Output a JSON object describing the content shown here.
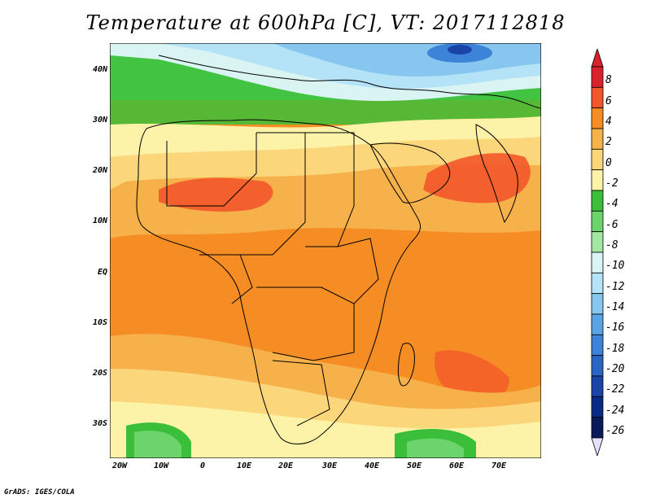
{
  "title": "Temperature at 600hPa [C], VT: 2017112818",
  "credit": "GrADS: IGES/COLA",
  "lat_labels": [
    "40N",
    "30N",
    "20N",
    "10N",
    "EQ",
    "10S",
    "20S",
    "30S"
  ],
  "lon_labels": [
    "20W",
    "10W",
    "0",
    "10E",
    "20E",
    "30E",
    "40E",
    "50E",
    "60E",
    "70E"
  ],
  "colorbar": {
    "labels": [
      "8",
      "6",
      "4",
      "2",
      "0",
      "-2",
      "-4",
      "-6",
      "-8",
      "-10",
      "-12",
      "-14",
      "-16",
      "-18",
      "-20",
      "-22",
      "-24",
      "-26"
    ],
    "colors": [
      "#d8222c",
      "#f3562a",
      "#f58c24",
      "#f6b14a",
      "#fbd67a",
      "#fdf3a8",
      "#3bbf3a",
      "#6bd46b",
      "#a2e8a2",
      "#d9f4f2",
      "#b4e2f6",
      "#86c6ef",
      "#5aa4e6",
      "#3d84d9",
      "#2a65c4",
      "#1a44a8",
      "#0b2a86",
      "#081a5a"
    ],
    "arrow_top": "#d8222c",
    "arrow_bottom": "#e6e0ff"
  },
  "map_colors": {
    "hot": "#f3562a",
    "warm": "#f58c24",
    "mild": "#f6b14a",
    "pale": "#fbd67a",
    "cool": "#fdf3a8",
    "green": "#3bbf3a",
    "lightgreen": "#6bd46b",
    "palegreen": "#a2e8a2",
    "cyan": "#d9f4f2",
    "lightblue": "#b4e2f6",
    "blue": "#86c6ef",
    "deepblue": "#3d84d9",
    "navy": "#1a44a8"
  }
}
